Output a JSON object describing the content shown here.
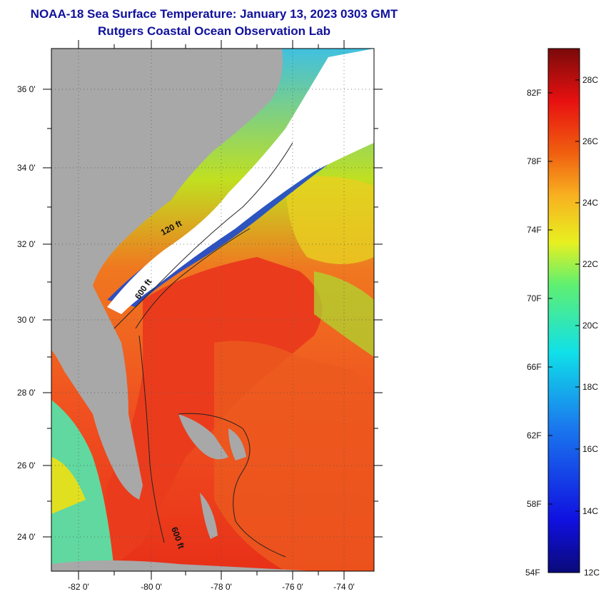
{
  "title": {
    "line1": "NOAA-18 Sea Surface Temperature:  January 13, 2023 0303 GMT",
    "line2": "Rutgers Coastal Ocean Observation Lab"
  },
  "map": {
    "lat_labels": [
      "36 0'",
      "34 0'",
      "32 0'",
      "30 0'",
      "28 0'",
      "26 0'",
      "24 0'"
    ],
    "lon_labels": [
      "-82 0'",
      "-80 0'",
      "-78 0'",
      "-76 0'",
      "-74 0'"
    ],
    "contour_labels": [
      "120 ft",
      "600 ft",
      "600 ft"
    ],
    "colors": {
      "land": "#a8a8a8",
      "cloud": "#ffffff",
      "warm": "#e8201a",
      "orange": "#f08020",
      "yellow": "#f0e020",
      "cyan": "#30c8e0",
      "blue": "#1040d0"
    }
  },
  "colorbar": {
    "fahrenheit_labels": [
      "82F",
      "78F",
      "74F",
      "70F",
      "66F",
      "62F",
      "58F",
      "54F"
    ],
    "celsius_labels": [
      "28C",
      "26C",
      "24C",
      "22C",
      "20C",
      "18C",
      "16C",
      "14C",
      "12C"
    ]
  }
}
